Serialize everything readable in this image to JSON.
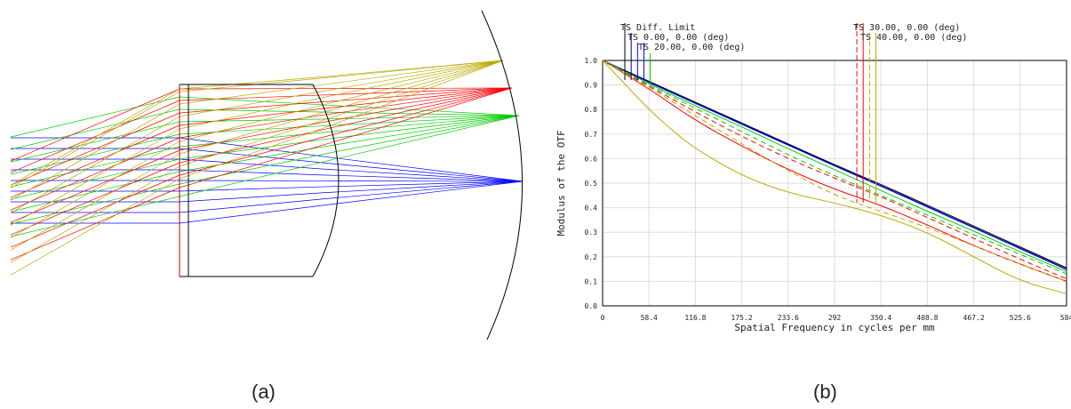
{
  "captions": {
    "a": "(a)",
    "b": "(b)"
  },
  "ray_trace": {
    "field_colors": [
      "#0000ff",
      "#00cc00",
      "#ff0000",
      "#bbaa00"
    ]
  },
  "chart_data": {
    "type": "line",
    "title": "",
    "xlabel": "Spatial Frequency in cycles per mm",
    "ylabel": "Modulus of the OTF",
    "xlim": [
      0,
      584
    ],
    "ylim": [
      0,
      1
    ],
    "xticks": [
      0,
      58.4,
      116.8,
      175.2,
      233.6,
      292,
      350.4,
      408.8,
      467.2,
      525.6,
      584
    ],
    "xtick_labels": [
      "0",
      "58.4",
      "116.8",
      "175.2",
      "233.6",
      "292",
      "350.4",
      "408.8",
      "467.2",
      "525.6",
      "584"
    ],
    "yticks": [
      0,
      0.1,
      0.2,
      0.3,
      0.4,
      0.5,
      0.6,
      0.7,
      0.8,
      0.9,
      1.0
    ],
    "ytick_labels": [
      "0.0",
      "0.1",
      "0.2",
      "0.3",
      "0.4",
      "0.5",
      "0.6",
      "0.7",
      "0.8",
      "0.9",
      "1.0"
    ],
    "grid": true,
    "legend": [
      {
        "label": "TS Diff. Limit",
        "color": "#000000",
        "marker_x": [
          28
        ]
      },
      {
        "label": "TS 0.00, 0.00 (deg)",
        "color": "#000088",
        "marker_x": [
          36
        ]
      },
      {
        "label": "TS 20.00, 0.00 (deg)",
        "color": "#0000ff",
        "marker_x": [
          44,
          52
        ]
      },
      {
        "label": "TS 30.00, 0.00 (deg)",
        "color": "#ff0000",
        "marker_x": [
          320,
          328
        ],
        "marker_dashed": [
          true,
          false
        ]
      },
      {
        "label": "TS 40.00, 0.00 (deg)",
        "color": "#bbaa00",
        "marker_x": [
          336,
          344
        ],
        "marker_dashed": [
          true,
          false
        ]
      }
    ],
    "extra_markers": [
      {
        "color": "#00cc00",
        "x": 60
      }
    ],
    "series": [
      {
        "color": "#000000",
        "dash": false,
        "x": [
          0,
          58.4,
          116.8,
          175.2,
          233.6,
          292,
          350.4,
          408.8,
          467.2,
          525.6,
          584
        ],
        "y": [
          1.0,
          0.915,
          0.83,
          0.745,
          0.66,
          0.575,
          0.495,
          0.41,
          0.325,
          0.24,
          0.155
        ]
      },
      {
        "color": "#000088",
        "dash": false,
        "x": [
          0,
          58.4,
          116.8,
          175.2,
          233.6,
          292,
          350.4,
          408.8,
          467.2,
          525.6,
          584
        ],
        "y": [
          1.0,
          0.912,
          0.827,
          0.742,
          0.657,
          0.572,
          0.49,
          0.405,
          0.32,
          0.235,
          0.15
        ]
      },
      {
        "color": "#0000ff",
        "dash": false,
        "x": [
          0,
          58.4,
          116.8,
          175.2,
          233.6,
          292,
          350.4,
          408.8,
          467.2,
          525.6,
          584
        ],
        "y": [
          1.0,
          0.91,
          0.825,
          0.74,
          0.655,
          0.57,
          0.488,
          0.403,
          0.318,
          0.233,
          0.148
        ]
      },
      {
        "color": "#00cc00",
        "dash": false,
        "x": [
          0,
          58.4,
          116.8,
          175.2,
          233.6,
          292,
          350.4,
          408.8,
          467.2,
          525.6,
          584
        ],
        "y": [
          1.0,
          0.905,
          0.815,
          0.73,
          0.64,
          0.555,
          0.47,
          0.385,
          0.305,
          0.22,
          0.14
        ]
      },
      {
        "color": "#00cc00",
        "dash": true,
        "x": [
          0,
          58.4,
          116.8,
          175.2,
          233.6,
          292,
          350.4,
          408.8,
          467.2,
          525.6,
          584
        ],
        "y": [
          1.0,
          0.9,
          0.805,
          0.71,
          0.615,
          0.53,
          0.45,
          0.37,
          0.29,
          0.21,
          0.13
        ]
      },
      {
        "color": "#ff0000",
        "dash": false,
        "x": [
          0,
          58.4,
          116.8,
          175.2,
          233.6,
          292,
          350.4,
          408.8,
          467.2,
          525.6,
          584
        ],
        "y": [
          1.0,
          0.885,
          0.755,
          0.65,
          0.555,
          0.475,
          0.41,
          0.33,
          0.245,
          0.17,
          0.1
        ]
      },
      {
        "color": "#ff0000",
        "dash": true,
        "x": [
          0,
          58.4,
          116.8,
          175.2,
          233.6,
          292,
          350.4,
          408.8,
          467.2,
          525.6,
          584
        ],
        "y": [
          1.0,
          0.895,
          0.79,
          0.69,
          0.6,
          0.52,
          0.445,
          0.36,
          0.275,
          0.19,
          0.11
        ]
      },
      {
        "color": "#bbaa00",
        "dash": false,
        "x": [
          0,
          29.2,
          58.4,
          87.6,
          116.8,
          175.2,
          233.6,
          292,
          350.4,
          408.8,
          467.2,
          525.6,
          584
        ],
        "y": [
          1.0,
          0.9,
          0.8,
          0.715,
          0.64,
          0.53,
          0.46,
          0.42,
          0.37,
          0.3,
          0.2,
          0.1,
          0.05
        ]
      },
      {
        "color": "#bbaa00",
        "dash": true,
        "x": [
          0,
          58.4,
          116.8,
          175.2,
          233.6,
          292,
          350.4,
          408.8,
          467.2,
          525.6,
          584
        ],
        "y": [
          1.0,
          0.89,
          0.775,
          0.66,
          0.55,
          0.45,
          0.385,
          0.32,
          0.245,
          0.17,
          0.1
        ]
      }
    ]
  }
}
